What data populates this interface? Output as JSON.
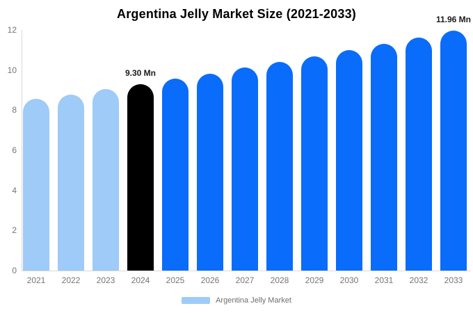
{
  "chart_data": {
    "type": "bar",
    "title": "Argentina Jelly Market Size (2021-2033)",
    "categories": [
      "2021",
      "2022",
      "2023",
      "2024",
      "2025",
      "2026",
      "2027",
      "2028",
      "2029",
      "2030",
      "2031",
      "2032",
      "2033"
    ],
    "values": [
      8.55,
      8.79,
      9.04,
      9.3,
      9.56,
      9.83,
      10.11,
      10.4,
      10.69,
      10.99,
      11.3,
      11.63,
      11.96
    ],
    "unit": "Mn",
    "bar_colors": [
      "#9ECBF7",
      "#9ECBF7",
      "#9ECBF7",
      "#000000",
      "#0A6CFA",
      "#0A6CFA",
      "#0A6CFA",
      "#0A6CFA",
      "#0A6CFA",
      "#0A6CFA",
      "#0A6CFA",
      "#0A6CFA",
      "#0A6CFA"
    ],
    "palette": {
      "historical": "#9ECBF7",
      "base_year": "#000000",
      "forecast": "#0A6CFA"
    },
    "xlabel": "",
    "ylabel": "",
    "ylim": [
      0,
      12
    ],
    "yticks": [
      0,
      2,
      4,
      6,
      8,
      10,
      12
    ],
    "grid": false,
    "annotations": [
      {
        "category": "2024",
        "text": "9.30 Mn"
      },
      {
        "category": "2033",
        "text": "11.96 Mn"
      }
    ],
    "legend": {
      "position": "bottom",
      "label": "Argentina Jelly Market",
      "swatch_color": "#9ECBF7"
    },
    "axis_color": "#D9D9D9",
    "tick_label_color": "#757575"
  }
}
